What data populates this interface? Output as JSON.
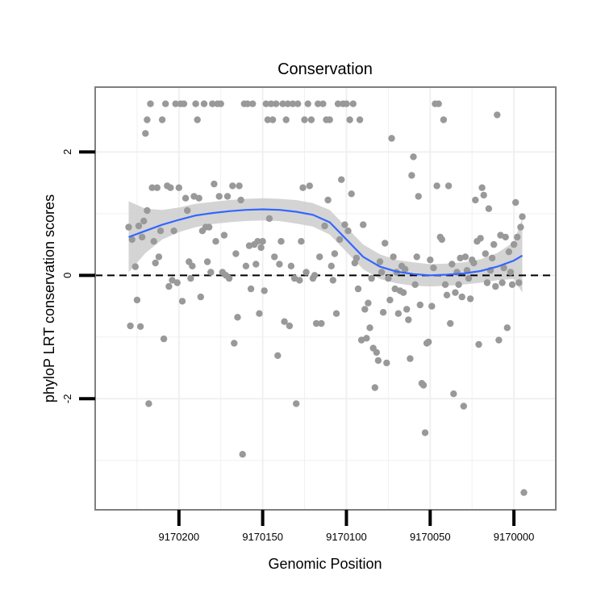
{
  "chart_data": {
    "type": "scatter",
    "title": "Conservation",
    "xlabel": "Genomic Position",
    "ylabel": "phyloP LRT conservation scores",
    "x_reversed": true,
    "xlim": [
      9170250,
      9169975
    ],
    "ylim": [
      -3.8,
      3.05
    ],
    "x_ticks": [
      9170200,
      9170150,
      9170100,
      9170050,
      9170000
    ],
    "x_tick_labels": [
      "9170200",
      "9170150",
      "9170100",
      "9170050",
      "9170000"
    ],
    "y_ticks": [
      2,
      0,
      -2
    ],
    "y_tick_labels": [
      "2",
      "0",
      "-2"
    ],
    "reference_line": {
      "y": 0,
      "style": "dashed",
      "color": "#000000"
    },
    "grid": true,
    "colors": {
      "points": "#999999",
      "smooth_line": "#3366ff",
      "confidence_band": "#cccccc",
      "panel_border": "#7f7f7f",
      "grid": "#f0f0f0"
    },
    "points": [
      {
        "x": 9170230,
        "y": 0.78
      },
      {
        "x": 9170229,
        "y": -0.82
      },
      {
        "x": 9170228,
        "y": 0.58
      },
      {
        "x": 9170226,
        "y": 0.14
      },
      {
        "x": 9170225,
        "y": -0.4
      },
      {
        "x": 9170224,
        "y": 0.8
      },
      {
        "x": 9170223,
        "y": -0.83
      },
      {
        "x": 9170222,
        "y": 0.62
      },
      {
        "x": 9170221,
        "y": 0.88
      },
      {
        "x": 9170220,
        "y": 2.3
      },
      {
        "x": 9170219,
        "y": 2.52
      },
      {
        "x": 9170219,
        "y": 1.05
      },
      {
        "x": 9170218,
        "y": -2.08
      },
      {
        "x": 9170217,
        "y": 2.78
      },
      {
        "x": 9170216,
        "y": 1.42
      },
      {
        "x": 9170215,
        "y": 0.55
      },
      {
        "x": 9170214,
        "y": 0.2
      },
      {
        "x": 9170213,
        "y": 1.42
      },
      {
        "x": 9170212,
        "y": 0.3
      },
      {
        "x": 9170211,
        "y": 0.72
      },
      {
        "x": 9170210,
        "y": 2.52
      },
      {
        "x": 9170209,
        "y": -1.03
      },
      {
        "x": 9170208,
        "y": 2.78
      },
      {
        "x": 9170207,
        "y": 1.45
      },
      {
        "x": 9170206,
        "y": -0.18
      },
      {
        "x": 9170205,
        "y": 1.42
      },
      {
        "x": 9170204,
        "y": -0.08
      },
      {
        "x": 9170203,
        "y": 0.72
      },
      {
        "x": 9170202,
        "y": 2.78
      },
      {
        "x": 9170201,
        "y": -0.12
      },
      {
        "x": 9170200,
        "y": 1.42
      },
      {
        "x": 9170199,
        "y": 2.78
      },
      {
        "x": 9170198,
        "y": -0.42
      },
      {
        "x": 9170197,
        "y": 2.78
      },
      {
        "x": 9170196,
        "y": 1.25
      },
      {
        "x": 9170195,
        "y": 1.05
      },
      {
        "x": 9170194,
        "y": 0.22
      },
      {
        "x": 9170193,
        "y": -0.05
      },
      {
        "x": 9170192,
        "y": 0.15
      },
      {
        "x": 9170191,
        "y": 1.28
      },
      {
        "x": 9170190,
        "y": 2.78
      },
      {
        "x": 9170189,
        "y": 2.52
      },
      {
        "x": 9170188,
        "y": 1.25
      },
      {
        "x": 9170187,
        "y": -0.35
      },
      {
        "x": 9170186,
        "y": 0.72
      },
      {
        "x": 9170185,
        "y": 2.78
      },
      {
        "x": 9170184,
        "y": 0.78
      },
      {
        "x": 9170183,
        "y": 0.22
      },
      {
        "x": 9170182,
        "y": 0.78
      },
      {
        "x": 9170181,
        "y": 0.05
      },
      {
        "x": 9170180,
        "y": 2.78
      },
      {
        "x": 9170179,
        "y": 1.48
      },
      {
        "x": 9170178,
        "y": 0.55
      },
      {
        "x": 9170177,
        "y": 2.78
      },
      {
        "x": 9170176,
        "y": 1.28
      },
      {
        "x": 9170175,
        "y": 2.78
      },
      {
        "x": 9170174,
        "y": 0.05
      },
      {
        "x": 9170173,
        "y": 0.65
      },
      {
        "x": 9170172,
        "y": 0.0
      },
      {
        "x": 9170171,
        "y": 1.28
      },
      {
        "x": 9170170,
        "y": -0.05
      },
      {
        "x": 9170168,
        "y": 1.45
      },
      {
        "x": 9170167,
        "y": -1.1
      },
      {
        "x": 9170166,
        "y": 0.35
      },
      {
        "x": 9170165,
        "y": -0.68
      },
      {
        "x": 9170164,
        "y": 1.45
      },
      {
        "x": 9170163,
        "y": 1.22
      },
      {
        "x": 9170162,
        "y": -2.9
      },
      {
        "x": 9170161,
        "y": 2.78
      },
      {
        "x": 9170160,
        "y": 0.15
      },
      {
        "x": 9170159,
        "y": 2.78
      },
      {
        "x": 9170158,
        "y": 0.48
      },
      {
        "x": 9170157,
        "y": -0.22
      },
      {
        "x": 9170156,
        "y": 2.78
      },
      {
        "x": 9170155,
        "y": 0.5
      },
      {
        "x": 9170154,
        "y": 0.18
      },
      {
        "x": 9170153,
        "y": 0.55
      },
      {
        "x": 9170152,
        "y": -0.62
      },
      {
        "x": 9170151,
        "y": 0.45
      },
      {
        "x": 9170150,
        "y": 0.55
      },
      {
        "x": 9170149,
        "y": -0.25
      },
      {
        "x": 9170148,
        "y": 2.78
      },
      {
        "x": 9170147,
        "y": 2.52
      },
      {
        "x": 9170146,
        "y": 0.92
      },
      {
        "x": 9170145,
        "y": 2.78
      },
      {
        "x": 9170144,
        "y": 2.52
      },
      {
        "x": 9170143,
        "y": 0.3
      },
      {
        "x": 9170142,
        "y": 2.78
      },
      {
        "x": 9170141,
        "y": -1.3
      },
      {
        "x": 9170140,
        "y": 0.18
      },
      {
        "x": 9170139,
        "y": 0.55
      },
      {
        "x": 9170138,
        "y": 2.78
      },
      {
        "x": 9170137,
        "y": -0.75
      },
      {
        "x": 9170136,
        "y": 2.52
      },
      {
        "x": 9170135,
        "y": 2.78
      },
      {
        "x": 9170134,
        "y": -0.82
      },
      {
        "x": 9170133,
        "y": 0.15
      },
      {
        "x": 9170132,
        "y": 2.78
      },
      {
        "x": 9170131,
        "y": -0.05
      },
      {
        "x": 9170130,
        "y": -2.08
      },
      {
        "x": 9170129,
        "y": 2.78
      },
      {
        "x": 9170128,
        "y": -0.08
      },
      {
        "x": 9170127,
        "y": 0.55
      },
      {
        "x": 9170126,
        "y": 1.42
      },
      {
        "x": 9170125,
        "y": 2.52
      },
      {
        "x": 9170124,
        "y": 0.05
      },
      {
        "x": 9170123,
        "y": 2.78
      },
      {
        "x": 9170122,
        "y": 1.45
      },
      {
        "x": 9170121,
        "y": 2.52
      },
      {
        "x": 9170120,
        "y": -0.05
      },
      {
        "x": 9170119,
        "y": 0.0
      },
      {
        "x": 9170118,
        "y": -0.78
      },
      {
        "x": 9170117,
        "y": 2.78
      },
      {
        "x": 9170116,
        "y": 0.3
      },
      {
        "x": 9170115,
        "y": -0.78
      },
      {
        "x": 9170114,
        "y": 2.78
      },
      {
        "x": 9170113,
        "y": 0.8
      },
      {
        "x": 9170112,
        "y": 2.52
      },
      {
        "x": 9170111,
        "y": 1.22
      },
      {
        "x": 9170110,
        "y": 2.52
      },
      {
        "x": 9170109,
        "y": 0.15
      },
      {
        "x": 9170108,
        "y": -0.08
      },
      {
        "x": 9170107,
        "y": 0.35
      },
      {
        "x": 9170106,
        "y": -0.62
      },
      {
        "x": 9170105,
        "y": 2.78
      },
      {
        "x": 9170104,
        "y": 0.58
      },
      {
        "x": 9170103,
        "y": 1.55
      },
      {
        "x": 9170102,
        "y": 2.78
      },
      {
        "x": 9170101,
        "y": 0.82
      },
      {
        "x": 9170100,
        "y": 2.78
      },
      {
        "x": 9170099,
        "y": 0.72
      },
      {
        "x": 9170098,
        "y": 2.52
      },
      {
        "x": 9170097,
        "y": 1.32
      },
      {
        "x": 9170096,
        "y": 2.78
      },
      {
        "x": 9170095,
        "y": 0.2
      },
      {
        "x": 9170094,
        "y": 0.28
      },
      {
        "x": 9170093,
        "y": -0.22
      },
      {
        "x": 9170092,
        "y": 2.52
      },
      {
        "x": 9170091,
        "y": -1.05
      },
      {
        "x": 9170090,
        "y": 0.82
      },
      {
        "x": 9170089,
        "y": -0.55
      },
      {
        "x": 9170088,
        "y": -1.02
      },
      {
        "x": 9170087,
        "y": -0.45
      },
      {
        "x": 9170086,
        "y": -0.85
      },
      {
        "x": 9170085,
        "y": -0.05
      },
      {
        "x": 9170084,
        "y": -1.18
      },
      {
        "x": 9170083,
        "y": -1.82
      },
      {
        "x": 9170082,
        "y": -1.25
      },
      {
        "x": 9170081,
        "y": -1.38
      },
      {
        "x": 9170080,
        "y": 0.22
      },
      {
        "x": 9170079,
        "y": 0.05
      },
      {
        "x": 9170078,
        "y": -0.6
      },
      {
        "x": 9170077,
        "y": 0.52
      },
      {
        "x": 9170076,
        "y": -1.42
      },
      {
        "x": 9170075,
        "y": -0.05
      },
      {
        "x": 9170074,
        "y": -0.4
      },
      {
        "x": 9170073,
        "y": 2.22
      },
      {
        "x": 9170072,
        "y": 0.3
      },
      {
        "x": 9170071,
        "y": -0.22
      },
      {
        "x": 9170070,
        "y": 0.05
      },
      {
        "x": 9170069,
        "y": -0.62
      },
      {
        "x": 9170068,
        "y": -0.25
      },
      {
        "x": 9170067,
        "y": 0.15
      },
      {
        "x": 9170066,
        "y": -0.28
      },
      {
        "x": 9170065,
        "y": 0.1
      },
      {
        "x": 9170064,
        "y": -0.55
      },
      {
        "x": 9170063,
        "y": -0.72
      },
      {
        "x": 9170062,
        "y": -1.35
      },
      {
        "x": 9170061,
        "y": 1.62
      },
      {
        "x": 9170060,
        "y": 1.92
      },
      {
        "x": 9170059,
        "y": -0.15
      },
      {
        "x": 9170058,
        "y": 0.3
      },
      {
        "x": 9170057,
        "y": 1.28
      },
      {
        "x": 9170056,
        "y": -0.48
      },
      {
        "x": 9170055,
        "y": -1.75
      },
      {
        "x": 9170054,
        "y": -1.78
      },
      {
        "x": 9170053,
        "y": -2.55
      },
      {
        "x": 9170052,
        "y": -1.1
      },
      {
        "x": 9170051,
        "y": -1.08
      },
      {
        "x": 9170050,
        "y": 0.25
      },
      {
        "x": 9170049,
        "y": -0.5
      },
      {
        "x": 9170048,
        "y": 0.12
      },
      {
        "x": 9170047,
        "y": 2.78
      },
      {
        "x": 9170046,
        "y": 1.45
      },
      {
        "x": 9170045,
        "y": 2.78
      },
      {
        "x": 9170044,
        "y": 0.62
      },
      {
        "x": 9170043,
        "y": 0.58
      },
      {
        "x": 9170042,
        "y": 2.52
      },
      {
        "x": 9170041,
        "y": -0.15
      },
      {
        "x": 9170040,
        "y": -0.32
      },
      {
        "x": 9170039,
        "y": 1.45
      },
      {
        "x": 9170038,
        "y": -0.78
      },
      {
        "x": 9170037,
        "y": 0.18
      },
      {
        "x": 9170036,
        "y": -1.92
      },
      {
        "x": 9170035,
        "y": -0.28
      },
      {
        "x": 9170034,
        "y": 0.05
      },
      {
        "x": 9170033,
        "y": -0.15
      },
      {
        "x": 9170032,
        "y": 0.28
      },
      {
        "x": 9170031,
        "y": -0.35
      },
      {
        "x": 9170030,
        "y": -2.12
      },
      {
        "x": 9170029,
        "y": 0.3
      },
      {
        "x": 9170028,
        "y": 0.08
      },
      {
        "x": 9170027,
        "y": -0.05
      },
      {
        "x": 9170026,
        "y": -0.38
      },
      {
        "x": 9170025,
        "y": 0.25
      },
      {
        "x": 9170024,
        "y": 0.2
      },
      {
        "x": 9170023,
        "y": 1.22
      },
      {
        "x": 9170022,
        "y": 0.55
      },
      {
        "x": 9170021,
        "y": -1.12
      },
      {
        "x": 9170020,
        "y": 0.6
      },
      {
        "x": 9170019,
        "y": 1.42
      },
      {
        "x": 9170018,
        "y": 1.3
      },
      {
        "x": 9170017,
        "y": 0.35
      },
      {
        "x": 9170016,
        "y": -0.12
      },
      {
        "x": 9170015,
        "y": 1.08
      },
      {
        "x": 9170014,
        "y": 0.08
      },
      {
        "x": 9170013,
        "y": 0.28
      },
      {
        "x": 9170012,
        "y": 0.5
      },
      {
        "x": 9170011,
        "y": -0.18
      },
      {
        "x": 9170010,
        "y": 2.6
      },
      {
        "x": 9170009,
        "y": -1.05
      },
      {
        "x": 9170008,
        "y": 0.65
      },
      {
        "x": 9170007,
        "y": -0.12
      },
      {
        "x": 9170006,
        "y": 0.12
      },
      {
        "x": 9170005,
        "y": 0.62
      },
      {
        "x": 9170004,
        "y": -0.85
      },
      {
        "x": 9170003,
        "y": 0.38
      },
      {
        "x": 9170002,
        "y": 0.05
      },
      {
        "x": 9170001,
        "y": -0.15
      },
      {
        "x": 9170000,
        "y": 0.5
      },
      {
        "x": 9169999,
        "y": 1.18
      },
      {
        "x": 9169998,
        "y": 0.62
      },
      {
        "x": 9169997,
        "y": -0.12
      },
      {
        "x": 9169996,
        "y": 0.78
      },
      {
        "x": 9169995,
        "y": 0.95
      },
      {
        "x": 9169994,
        "y": -3.52
      }
    ],
    "smooth": {
      "x": [
        9170230,
        9170220,
        9170210,
        9170200,
        9170190,
        9170180,
        9170170,
        9170160,
        9170150,
        9170140,
        9170130,
        9170120,
        9170110,
        9170100,
        9170090,
        9170080,
        9170070,
        9170060,
        9170050,
        9170040,
        9170030,
        9170020,
        9170010,
        9170000,
        9169995
      ],
      "y": [
        0.62,
        0.72,
        0.82,
        0.9,
        0.97,
        1.01,
        1.04,
        1.06,
        1.07,
        1.06,
        1.03,
        0.98,
        0.86,
        0.58,
        0.3,
        0.14,
        0.06,
        0.02,
        0.0,
        0.01,
        0.03,
        0.07,
        0.14,
        0.24,
        0.32
      ],
      "y_low": [
        0.05,
        0.36,
        0.58,
        0.7,
        0.78,
        0.83,
        0.86,
        0.88,
        0.89,
        0.88,
        0.84,
        0.79,
        0.66,
        0.38,
        0.1,
        -0.06,
        -0.13,
        -0.17,
        -0.18,
        -0.17,
        -0.15,
        -0.12,
        -0.08,
        -0.06,
        -0.28
      ],
      "y_high": [
        1.2,
        1.08,
        1.06,
        1.1,
        1.16,
        1.19,
        1.22,
        1.24,
        1.25,
        1.24,
        1.22,
        1.17,
        1.06,
        0.78,
        0.5,
        0.34,
        0.25,
        0.21,
        0.18,
        0.19,
        0.21,
        0.26,
        0.36,
        0.54,
        0.92
      ]
    }
  }
}
